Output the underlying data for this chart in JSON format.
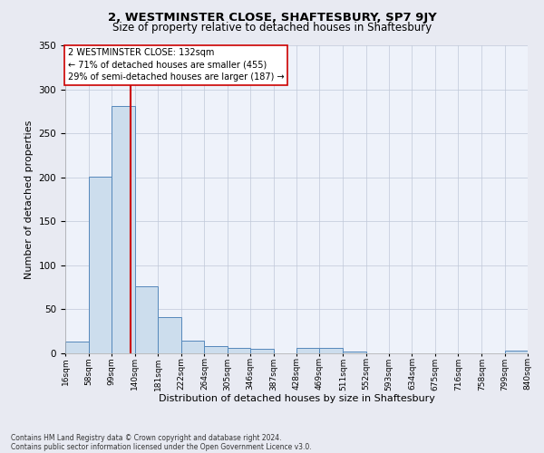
{
  "title1": "2, WESTMINSTER CLOSE, SHAFTESBURY, SP7 9JY",
  "title2": "Size of property relative to detached houses in Shaftesbury",
  "xlabel": "Distribution of detached houses by size in Shaftesbury",
  "ylabel": "Number of detached properties",
  "footnote1": "Contains HM Land Registry data © Crown copyright and database right 2024.",
  "footnote2": "Contains public sector information licensed under the Open Government Licence v3.0.",
  "bin_edges": [
    16,
    58,
    99,
    140,
    181,
    222,
    264,
    305,
    346,
    387,
    428,
    469,
    511,
    552,
    593,
    634,
    675,
    716,
    758,
    799,
    840
  ],
  "bar_heights": [
    13,
    201,
    281,
    76,
    41,
    14,
    8,
    6,
    5,
    0,
    6,
    6,
    2,
    0,
    0,
    0,
    0,
    0,
    0,
    3
  ],
  "bar_color": "#ccdded",
  "bar_edge_color": "#5588bb",
  "property_size": 132,
  "red_line_color": "#cc0000",
  "annotation_line1": "2 WESTMINSTER CLOSE: 132sqm",
  "annotation_line2": "← 71% of detached houses are smaller (455)",
  "annotation_line3": "29% of semi-detached houses are larger (187) →",
  "ylim": [
    0,
    350
  ],
  "yticks": [
    0,
    50,
    100,
    150,
    200,
    250,
    300,
    350
  ],
  "bg_color": "#e8eaf2",
  "plot_bg": "#eef2fa",
  "title1_fontsize": 9.5,
  "title2_fontsize": 8.5,
  "annot_fontsize": 7,
  "tick_label_fontsize": 6.5,
  "ylabel_fontsize": 8,
  "xlabel_fontsize": 8
}
